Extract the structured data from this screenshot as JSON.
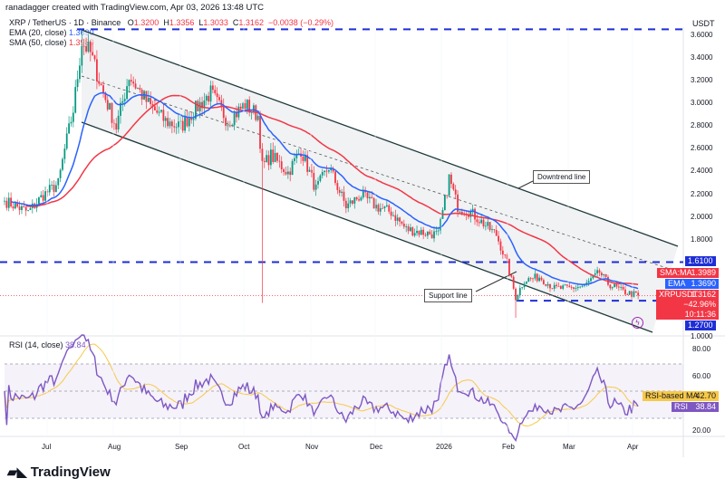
{
  "header": {
    "credit": "ranadagger created with TradingView.com, Apr 03, 2026 13:48 UTC",
    "symbol": "XRP / TetherUS · 1D · Binance",
    "o_label": "O",
    "o": "1.3200",
    "h_label": "H",
    "h": "1.3356",
    "l_label": "L",
    "l": "1.3033",
    "c_label": "C",
    "c": "1.3162",
    "change": "−0.0038 (−0.29%)",
    "ema_label": "EMA (20, close)",
    "ema_value": "1.3690",
    "sma_label": "SMA (50, close)",
    "sma_value": "1.3989",
    "currency": "USDT"
  },
  "annotations": {
    "downtrend": "Downtrend line",
    "support": "Support line"
  },
  "price_labels": {
    "resistance": "1.6100",
    "sma_name": "SMA:MA",
    "sma": "1.3989",
    "ema_name": "EMA",
    "ema": "1.3690",
    "sym": "XRPUSDT",
    "last": "1.3162",
    "pct": "−42.96%",
    "countdown": "10:11:36",
    "support": "1.2700"
  },
  "rsi": {
    "label": "RSI (14, close)",
    "value": "38.84",
    "ma_name": "RSI-based MA",
    "ma_value": "42.70",
    "rsi_name": "RSI"
  },
  "logo": "TradingView",
  "colors": {
    "up": "#089981",
    "down": "#f23645",
    "ema": "#2962ff",
    "sma": "#f23645",
    "rsi": "#7e57c2",
    "rsi_ma": "#f7c948",
    "levels": "#1e2ed6",
    "channel": "#1f3a3a"
  },
  "chart_data": {
    "type": "candlestick",
    "price_axis": {
      "ticks": [
        "3.6000",
        "3.4000",
        "3.2000",
        "3.0000",
        "2.8000",
        "2.6000",
        "2.4000",
        "2.2000",
        "2.0000",
        "1.8000",
        "1.0000"
      ],
      "range": [
        1.0,
        3.66
      ]
    },
    "time_axis": {
      "ticks": [
        "Jul",
        "Aug",
        "Sep",
        "Oct",
        "Nov",
        "Dec",
        "2026",
        "Feb",
        "Mar",
        "Apr"
      ]
    },
    "rsi_axis": {
      "ticks": [
        "80.00",
        "60.00",
        "20.00"
      ],
      "bands": [
        70,
        30
      ]
    },
    "horizontal_levels": [
      3.66,
      1.61,
      1.27
    ],
    "approx_closes": [
      [
        "2025-06-12",
        2.15
      ],
      [
        "2025-06-23",
        2.05
      ],
      [
        "2025-06-30",
        2.2
      ],
      [
        "2025-07-07",
        2.3
      ],
      [
        "2025-07-10",
        2.6
      ],
      [
        "2025-07-14",
        2.95
      ],
      [
        "2025-07-18",
        3.55
      ],
      [
        "2025-07-22",
        3.45
      ],
      [
        "2025-07-28",
        3.1
      ],
      [
        "2025-08-03",
        2.8
      ],
      [
        "2025-08-09",
        3.25
      ],
      [
        "2025-08-18",
        3.0
      ],
      [
        "2025-08-26",
        2.85
      ],
      [
        "2025-09-02",
        2.8
      ],
      [
        "2025-09-10",
        2.98
      ],
      [
        "2025-09-16",
        3.1
      ],
      [
        "2025-09-24",
        2.85
      ],
      [
        "2025-10-02",
        3.0
      ],
      [
        "2025-10-08",
        2.9
      ],
      [
        "2025-10-10",
        2.45
      ],
      [
        "2025-10-14",
        2.55
      ],
      [
        "2025-10-22",
        2.4
      ],
      [
        "2025-10-28",
        2.6
      ],
      [
        "2025-11-04",
        2.25
      ],
      [
        "2025-11-10",
        2.45
      ],
      [
        "2025-11-18",
        2.1
      ],
      [
        "2025-11-25",
        2.2
      ],
      [
        "2025-12-02",
        2.1
      ],
      [
        "2025-12-09",
        2.05
      ],
      [
        "2025-12-16",
        1.9
      ],
      [
        "2025-12-24",
        1.87
      ],
      [
        "2025-12-31",
        1.85
      ],
      [
        "2026-01-05",
        2.35
      ],
      [
        "2026-01-09",
        2.1
      ],
      [
        "2026-01-15",
        2.05
      ],
      [
        "2026-01-21",
        1.95
      ],
      [
        "2026-01-27",
        1.85
      ],
      [
        "2026-02-01",
        1.6
      ],
      [
        "2026-02-05",
        1.3
      ],
      [
        "2026-02-09",
        1.45
      ],
      [
        "2026-02-16",
        1.48
      ],
      [
        "2026-02-23",
        1.38
      ],
      [
        "2026-03-02",
        1.38
      ],
      [
        "2026-03-09",
        1.4
      ],
      [
        "2026-03-16",
        1.52
      ],
      [
        "2026-03-20",
        1.42
      ],
      [
        "2026-03-27",
        1.35
      ],
      [
        "2026-04-03",
        1.3162
      ]
    ],
    "wicks": [
      [
        "2025-10-10",
        1.25
      ],
      [
        "2026-02-05",
        1.12
      ],
      [
        "2025-07-18",
        3.66
      ]
    ],
    "indicators": {
      "ema20": 1.369,
      "sma50": 1.3989,
      "rsi14": 38.84,
      "rsi_ma": 42.7
    }
  }
}
